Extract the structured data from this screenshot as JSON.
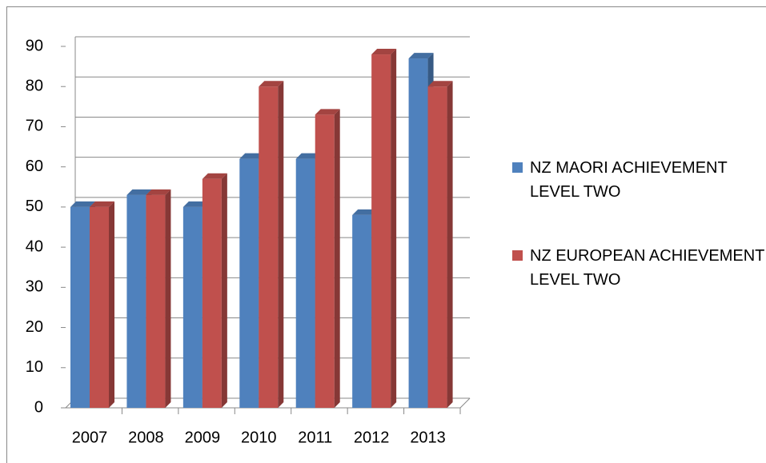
{
  "chart_data": {
    "type": "bar3d",
    "categories": [
      "2007",
      "2008",
      "2009",
      "2010",
      "2011",
      "2012",
      "2013"
    ],
    "series": [
      {
        "name": "NZ MAORI ACHIEVEMENT LEVEL TWO",
        "color": "#4f81bd",
        "values": [
          50,
          53,
          50,
          62,
          62,
          48,
          87
        ]
      },
      {
        "name": "NZ EUROPEAN ACHIEVEMENT LEVEL TWO",
        "color": "#c0504d",
        "values": [
          50,
          53,
          57,
          80,
          73,
          88,
          80
        ]
      }
    ],
    "ylim": [
      0,
      90
    ],
    "yticks": [
      0,
      10,
      20,
      30,
      40,
      50,
      60,
      70,
      80,
      90
    ],
    "grid": true,
    "legend": "right"
  }
}
